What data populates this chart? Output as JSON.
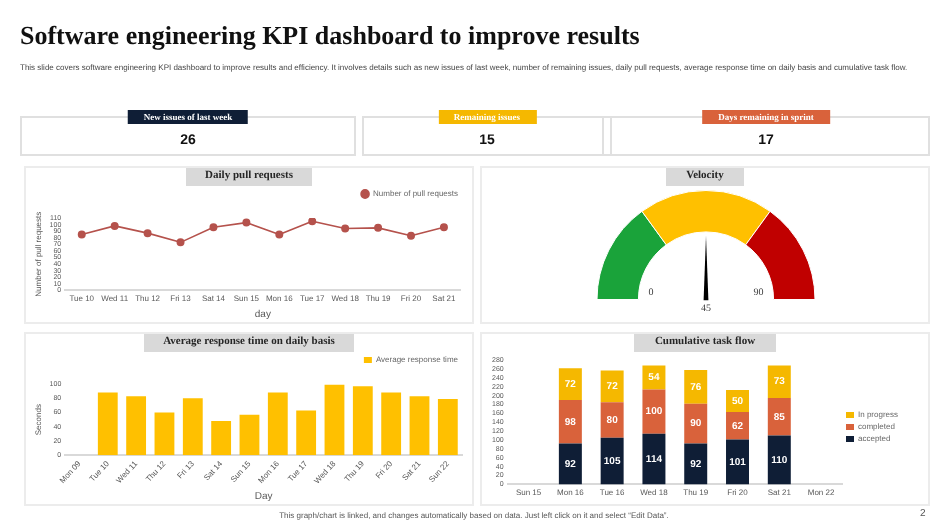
{
  "chart_data": [
    {
      "type": "other",
      "title": "Software engineering KPI dashboard to improve results",
      "subtitle": "This slide covers software engineering KPI dashboard to improve results and efficiency. It involves details such as new issues of last week, number of remaining issues, daily pull requests, average response time on daily basis and cumulative task flow.",
      "annotations": [
        "New issues of last week",
        "26",
        "Remaining issues",
        "15",
        "Days remaining in sprint",
        "17",
        "This graph/chart is linked, and changes automatically based on data. Just left click on it and select “Edit Data”.",
        "2"
      ],
      "colors": [
        "#0f1e36",
        "#f5b800",
        "#d9623b"
      ]
    },
    {
      "type": "line",
      "title": "Daily pull requests",
      "xlabel": "day",
      "ylabel": "Number of pull requests",
      "categories": [
        "Tue 10",
        "Wed 11",
        "Thu 12",
        "Fri 13",
        "Sat 14",
        "Sun 15",
        "Mon 16",
        "Tue 17",
        "Wed 18",
        "Thu 19",
        "Fri 20",
        "Sat 21"
      ],
      "series": [
        {
          "name": "Number of pull requests",
          "color": "#b5524c",
          "values": [
            85,
            98,
            87,
            73,
            96,
            103,
            85,
            105,
            94,
            95,
            83,
            96
          ]
        }
      ],
      "ylim": [
        0,
        110
      ],
      "yticks": [
        0,
        10,
        20,
        30,
        40,
        50,
        60,
        70,
        80,
        90,
        100,
        110
      ],
      "marker": "circle",
      "legend": "top right"
    },
    {
      "type": "donut",
      "title": "Velocity",
      "categories": [
        null,
        null,
        null
      ],
      "values": [
        30,
        40,
        30
      ],
      "colors": [
        "#1aa33a",
        "#ffc000",
        "#c00000"
      ],
      "annotations": [
        "0",
        "90",
        "45"
      ]
    },
    {
      "type": "bar",
      "title": "Average response time on daily basis",
      "xlabel": "Day",
      "ylabel": "Seconds",
      "categories": [
        "Mon 09",
        "Tue 10",
        "Wed 11",
        "Thu 12",
        "Fri 13",
        "Sat 14",
        "Sun 15",
        "Mon 16",
        "Tue 17",
        "Wed 18",
        "Thu 19",
        "Fri 20",
        "Sat 21",
        "Sun 22"
      ],
      "series": [
        {
          "name": "Average response time",
          "color": "#ffc000",
          "values": [
            null,
            88,
            83,
            60,
            80,
            48,
            57,
            88,
            63,
            99,
            97,
            88,
            83,
            79
          ]
        }
      ],
      "ylim": [
        0,
        100
      ],
      "yticks": [
        0,
        20,
        40,
        60,
        80,
        100
      ],
      "legend": "top right"
    },
    {
      "type": "bar",
      "title": "Cumulative task flow",
      "stacked": true,
      "categories": [
        "Sun 15",
        "Mon 16",
        "Tue 16",
        "Wed 18",
        "Thu 19",
        "Fri 20",
        "Sat 21",
        "Mon 22"
      ],
      "series": [
        {
          "name": "accepted",
          "color": "#0f1e36",
          "values": [
            null,
            92,
            105,
            114,
            92,
            101,
            110,
            null
          ]
        },
        {
          "name": "completed",
          "color": "#d9623b",
          "values": [
            null,
            98,
            80,
            100,
            90,
            62,
            85,
            null
          ]
        },
        {
          "name": "In progress",
          "color": "#f5b800",
          "values": [
            null,
            72,
            72,
            54,
            76,
            50,
            73,
            null
          ]
        }
      ],
      "ylim": [
        0,
        280
      ],
      "yticks": [
        0,
        20,
        40,
        60,
        80,
        100,
        120,
        140,
        160,
        180,
        200,
        220,
        240,
        260,
        280
      ],
      "data_labels": true,
      "legend": "right"
    }
  ]
}
